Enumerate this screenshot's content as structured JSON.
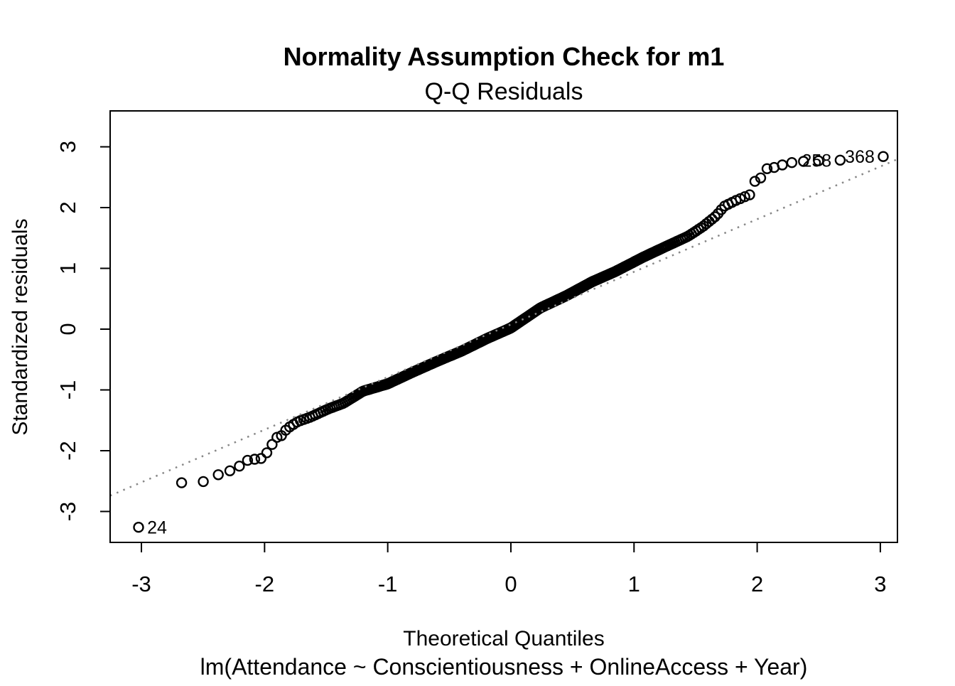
{
  "chart_data": {
    "type": "scatter",
    "chart_kind": "qq-normal-residual-plot",
    "title": "Normality Assumption Check for m1",
    "subtitle": "Q-Q Residuals",
    "xlabel": "Theoretical Quantiles",
    "ylabel": "Standardized residuals",
    "caption": "lm(Attendance ~ Conscientiousness + OnlineAccess + Year)",
    "n_points": 400,
    "x_ticks": [
      -3,
      -2,
      -1,
      0,
      1,
      2,
      3
    ],
    "y_ticks": [
      -3,
      -2,
      -1,
      0,
      1,
      2,
      3
    ],
    "xlim": [
      -3.254,
      3.139
    ],
    "ylim": [
      -3.509,
      3.591
    ],
    "grid": false,
    "marker": {
      "shape": "open-circle",
      "color": "#000000",
      "radius_px": 6.5,
      "stroke_px": 2.4
    },
    "reference_line": {
      "kind": "qqline",
      "slope": 0.866,
      "intercept": 0.077,
      "line_style": "dotted",
      "color": "#878787"
    },
    "quantile_curve_anchors": [
      [
        -3.02,
        -3.26
      ],
      [
        -2.67,
        -2.52
      ],
      [
        -2.5,
        -2.51
      ],
      [
        -2.37,
        -2.39
      ],
      [
        -2.28,
        -2.33
      ],
      [
        -2.2,
        -2.25
      ],
      [
        -2.14,
        -2.16
      ],
      [
        -2.08,
        -2.14
      ],
      [
        -2.03,
        -2.13
      ],
      [
        -1.98,
        -2.03
      ],
      [
        -1.94,
        -1.9
      ],
      [
        -1.9,
        -1.78
      ],
      [
        -1.86,
        -1.75
      ],
      [
        -1.82,
        -1.64
      ],
      [
        -1.73,
        -1.52
      ],
      [
        -1.63,
        -1.45
      ],
      [
        -1.48,
        -1.31
      ],
      [
        -1.36,
        -1.22
      ],
      [
        -1.2,
        -1.02
      ],
      [
        -1.0,
        -0.9
      ],
      [
        -0.8,
        -0.71
      ],
      [
        -0.6,
        -0.53
      ],
      [
        -0.4,
        -0.36
      ],
      [
        -0.2,
        -0.16
      ],
      [
        0.0,
        0.02
      ],
      [
        0.24,
        0.35
      ],
      [
        0.45,
        0.55
      ],
      [
        0.66,
        0.78
      ],
      [
        0.85,
        0.95
      ],
      [
        1.08,
        1.19
      ],
      [
        1.28,
        1.38
      ],
      [
        1.44,
        1.53
      ],
      [
        1.56,
        1.69
      ],
      [
        1.67,
        1.87
      ],
      [
        1.73,
        2.02
      ],
      [
        1.83,
        2.12
      ],
      [
        1.9,
        2.18
      ],
      [
        1.94,
        2.21
      ],
      [
        1.98,
        2.43
      ],
      [
        2.03,
        2.49
      ],
      [
        2.08,
        2.64
      ],
      [
        2.14,
        2.66
      ],
      [
        2.2,
        2.7
      ],
      [
        2.28,
        2.74
      ],
      [
        2.37,
        2.76
      ],
      [
        2.5,
        2.77
      ],
      [
        2.67,
        2.78
      ],
      [
        3.02,
        2.84
      ]
    ],
    "labeled_points": [
      {
        "label": "24",
        "x": -3.02,
        "y": -3.26,
        "label_side": "right"
      },
      {
        "label": "258",
        "x": 2.67,
        "y": 2.78,
        "label_side": "left"
      },
      {
        "label": "368",
        "x": 3.02,
        "y": 2.84,
        "label_side": "left"
      }
    ]
  }
}
